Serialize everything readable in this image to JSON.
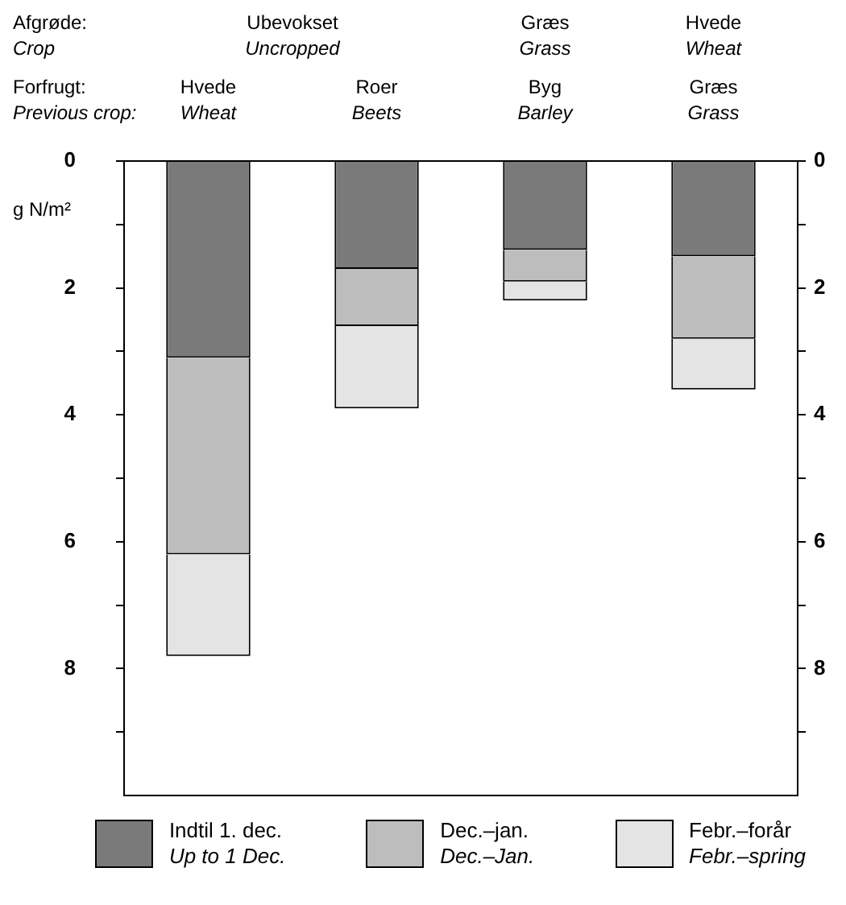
{
  "chart_data": {
    "type": "bar",
    "stacked": true,
    "ylabel": "g N/m²",
    "categories": [
      "Hvede\nWheat",
      "Roer\nBeets",
      "Byg\nBarley",
      "Græs\nGrass"
    ],
    "series": [
      {
        "name": "Indtil 1. dec.\nUp to 1 Dec.",
        "color": "#7a7a7a",
        "values": [
          3.1,
          1.7,
          1.4,
          1.5
        ]
      },
      {
        "name": "Dec.–jan.\nDec.–Jan.",
        "color": "#bdbdbd",
        "values": [
          3.1,
          0.9,
          0.5,
          1.3
        ]
      },
      {
        "name": "Febr.–forår\nFebr.–spring",
        "color": "#e4e4e4",
        "values": [
          1.6,
          1.3,
          0.3,
          0.8
        ]
      }
    ],
    "ylim": [
      10,
      0
    ],
    "yticks": [
      0,
      {
        "value": 1,
        "label": null
      },
      2,
      {
        "value": 3,
        "label": null
      },
      4,
      {
        "value": 5,
        "label": null
      },
      6,
      {
        "value": 7,
        "label": null
      },
      8,
      {
        "value": 9,
        "label": null
      }
    ],
    "y2lim": [
      10,
      0
    ],
    "y2ticks": [
      0,
      {
        "value": 1,
        "label": null
      },
      2,
      {
        "value": 3,
        "label": null
      },
      4,
      {
        "value": 5,
        "label": null
      },
      6,
      {
        "value": 7,
        "label": null
      },
      8,
      {
        "value": 9,
        "label": null
      }
    ],
    "annotations": [
      "Afgrøde:\nCrop",
      "Forfrugt:\nPrevious crop:",
      "Ubevokset\nUncropped",
      "Græs\nGrass",
      "Hvede\nWheat"
    ],
    "legend": "bottom",
    "grid": false
  }
}
